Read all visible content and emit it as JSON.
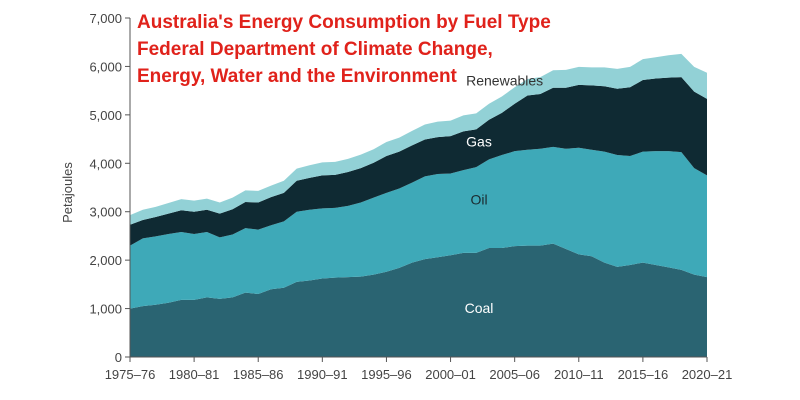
{
  "chart_data": {
    "type": "area",
    "stacked": true,
    "title_lines": [
      "Australia's Energy Consumption by Fuel Type",
      "Federal Department of Climate Change,",
      "Energy, Water and the Environment"
    ],
    "xlabel": "",
    "ylabel": "Petajoules",
    "ylim": [
      0,
      7000
    ],
    "yticks": [
      0,
      1000,
      2000,
      3000,
      4000,
      5000,
      6000,
      7000
    ],
    "ytick_labels": [
      "0",
      "1,000",
      "2,000",
      "3,000",
      "4,000",
      "5,000",
      "6,000",
      "7,000"
    ],
    "xtick_labels": [
      "1975–76",
      "1980–81",
      "1985–86",
      "1990–91",
      "1995–96",
      "2000–01",
      "2005–06",
      "2010–11",
      "2015–16",
      "2020–21"
    ],
    "grid": false,
    "legend": "none",
    "x": [
      "1975–76",
      "1976–77",
      "1977–78",
      "1978–79",
      "1979–80",
      "1980–81",
      "1981–82",
      "1982–83",
      "1983–84",
      "1984–85",
      "1985–86",
      "1986–87",
      "1987–88",
      "1988–89",
      "1989–90",
      "1990–91",
      "1991–92",
      "1992–93",
      "1993–94",
      "1994–95",
      "1995–96",
      "1996–97",
      "1997–98",
      "1998–99",
      "1999–00",
      "2000–01",
      "2001–02",
      "2002–03",
      "2003–04",
      "2004–05",
      "2005–06",
      "2006–07",
      "2007–08",
      "2008–09",
      "2009–10",
      "2010–11",
      "2011–12",
      "2012–13",
      "2013–14",
      "2014–15",
      "2015–16",
      "2016–17",
      "2017–18",
      "2018–19",
      "2019–20",
      "2020–21"
    ],
    "series": [
      {
        "name": "Coal",
        "color": "#2a6472",
        "values": [
          1000,
          1050,
          1080,
          1120,
          1180,
          1180,
          1230,
          1200,
          1230,
          1330,
          1300,
          1400,
          1430,
          1550,
          1580,
          1620,
          1640,
          1650,
          1660,
          1700,
          1760,
          1840,
          1950,
          2020,
          2060,
          2100,
          2150,
          2150,
          2250,
          2250,
          2290,
          2300,
          2300,
          2340,
          2230,
          2120,
          2080,
          1950,
          1860,
          1900,
          1950,
          1900,
          1850,
          1800,
          1700,
          1650
        ]
      },
      {
        "name": "Oil",
        "color": "#3ea9b8",
        "values": [
          1300,
          1400,
          1410,
          1420,
          1400,
          1360,
          1350,
          1270,
          1300,
          1330,
          1330,
          1320,
          1370,
          1450,
          1460,
          1450,
          1440,
          1470,
          1530,
          1590,
          1630,
          1640,
          1650,
          1710,
          1720,
          1690,
          1710,
          1770,
          1830,
          1920,
          1960,
          1980,
          2000,
          2000,
          2070,
          2200,
          2200,
          2290,
          2310,
          2250,
          2290,
          2350,
          2400,
          2430,
          2200,
          2100
        ]
      },
      {
        "name": "Gas",
        "color": "#0f2a33",
        "values": [
          430,
          380,
          400,
          420,
          450,
          460,
          460,
          490,
          520,
          540,
          560,
          580,
          590,
          640,
          660,
          680,
          680,
          700,
          710,
          720,
          760,
          760,
          770,
          760,
          760,
          770,
          800,
          780,
          820,
          870,
          980,
          1120,
          1130,
          1220,
          1260,
          1300,
          1330,
          1350,
          1370,
          1420,
          1480,
          1500,
          1520,
          1550,
          1580,
          1580
        ]
      },
      {
        "name": "Renewables",
        "color": "#92d1d6",
        "values": [
          200,
          210,
          210,
          220,
          230,
          230,
          230,
          230,
          240,
          240,
          240,
          240,
          250,
          250,
          260,
          270,
          270,
          270,
          280,
          280,
          290,
          290,
          300,
          310,
          320,
          320,
          330,
          330,
          330,
          340,
          340,
          340,
          350,
          360,
          370,
          370,
          370,
          390,
          410,
          420,
          430,
          440,
          460,
          480,
          510,
          540
        ]
      }
    ]
  }
}
